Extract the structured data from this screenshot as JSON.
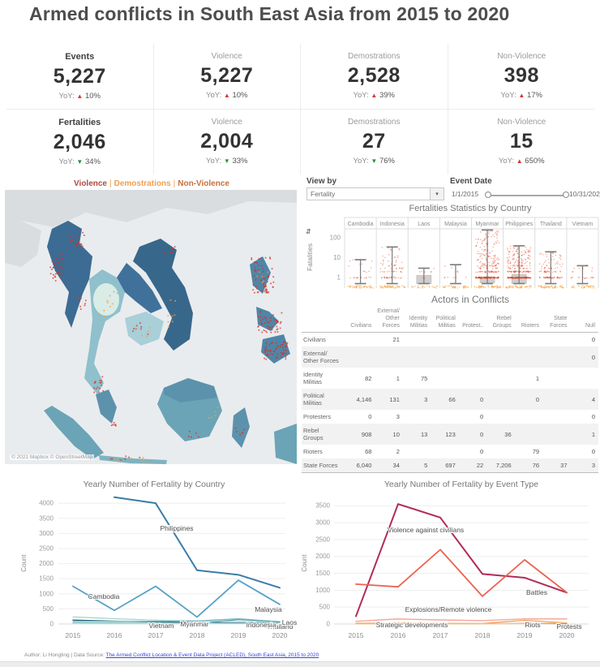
{
  "title": "Armed conflicts in South East Asia from 2015 to 2020",
  "yoy_label": "YoY:",
  "kpi_colors": {
    "up": "#d8372f",
    "down": "#2f8e44"
  },
  "kpis": [
    {
      "label": "Events",
      "value": "5,227",
      "yoy": "10%",
      "dir": "up",
      "emphasis": true
    },
    {
      "label": "Violence",
      "value": "5,227",
      "yoy": "10%",
      "dir": "up",
      "emphasis": false
    },
    {
      "label": "Demostrations",
      "value": "2,528",
      "yoy": "39%",
      "dir": "up",
      "emphasis": false
    },
    {
      "label": "Non-Violence",
      "value": "398",
      "yoy": "17%",
      "dir": "up",
      "emphasis": false
    },
    {
      "label": "Fertalities",
      "value": "2,046",
      "yoy": "34%",
      "dir": "down",
      "emphasis": true
    },
    {
      "label": "Violence",
      "value": "2,004",
      "yoy": "33%",
      "dir": "down",
      "emphasis": false
    },
    {
      "label": "Demostrations",
      "value": "27",
      "yoy": "76%",
      "dir": "down",
      "emphasis": false
    },
    {
      "label": "Non-Violence",
      "value": "15",
      "yoy": "650%",
      "dir": "up",
      "emphasis": false
    }
  ],
  "map": {
    "legend": [
      {
        "label": "Violence",
        "color": "#b04a42"
      },
      {
        "label": "Demostrations",
        "color": "#f0a04c"
      },
      {
        "label": "Non-Violence",
        "color": "#c9703c"
      }
    ],
    "separator": "|",
    "attribution": "© 2021 Mapbox © OpenStreetMap"
  },
  "controls": {
    "view_by_label": "View by",
    "view_by_value": "Fertality",
    "event_date_label": "Event Date",
    "date_start": "1/1/2015",
    "date_end": "10/31/2020"
  },
  "footer": {
    "credit": "Author: Li Hongting | Data Source: ",
    "link": "The Armed Conflict Location & Event Data Project (ACLED), South East Asia, 2015 to 2020"
  },
  "chart_data": [
    {
      "type": "boxplot",
      "title": "Fertalities Statistics by Country",
      "ylabel": "Fatalities",
      "yscale": "log",
      "yticks": [
        1,
        10,
        100
      ],
      "categories": [
        "Cambodia",
        "Indonesia",
        "Laos",
        "Malaysia",
        "Myanmar",
        "Philippines",
        "Thailand",
        "Vietnam"
      ],
      "whisker_high": [
        8,
        35,
        3,
        4.5,
        250,
        40,
        20,
        4
      ],
      "whisker_low": 0.5,
      "box": [
        null,
        null,
        [
          0.5,
          1.3
        ],
        null,
        [
          0.55,
          1.1
        ],
        [
          0.5,
          1.45
        ],
        null,
        null
      ],
      "point_count": [
        25,
        80,
        8,
        12,
        300,
        300,
        110,
        25
      ],
      "zero_point_count": [
        45,
        50,
        25,
        40,
        50,
        50,
        50,
        35
      ],
      "colors": {
        "points": "#e03210",
        "zero_points": "#f6a13c",
        "whisker": "#7a7a7a"
      }
    },
    {
      "type": "table",
      "title": "Actors in Conflicts",
      "columns": [
        "Civilians",
        "External/\nOther\nForces",
        "Identity\nMilitias",
        "Political\nMilitias",
        "Protest..",
        "Rebel\nGroups",
        "Rioters",
        "State\nForces",
        "Null"
      ],
      "rows": [
        {
          "label": "Civilians",
          "values": [
            "",
            "21",
            "",
            "",
            "",
            "",
            "",
            "",
            "0"
          ]
        },
        {
          "label": "External/\nOther Forces",
          "values": [
            "",
            "",
            "",
            "",
            "",
            "",
            "",
            "",
            "0"
          ]
        },
        {
          "label": "Identity\nMilitias",
          "values": [
            "82",
            "1",
            "75",
            "",
            "",
            "",
            "1",
            "",
            ""
          ]
        },
        {
          "label": "Political\nMilitias",
          "values": [
            "4,146",
            "131",
            "3",
            "66",
            "0",
            "",
            "0",
            "",
            "4"
          ]
        },
        {
          "label": "Protesters",
          "values": [
            "0",
            "3",
            "",
            "",
            "0",
            "",
            "",
            "",
            "0"
          ]
        },
        {
          "label": "Rebel\nGroups",
          "values": [
            "908",
            "10",
            "13",
            "123",
            "0",
            "36",
            "",
            "",
            "1"
          ]
        },
        {
          "label": "Rioters",
          "values": [
            "68",
            "2",
            "",
            "",
            "0",
            "",
            "79",
            "",
            "0"
          ]
        },
        {
          "label": "State Forces",
          "values": [
            "6,040",
            "34",
            "5",
            "697",
            "22",
            "7,206",
            "76",
            "37",
            "3"
          ]
        }
      ]
    },
    {
      "type": "line",
      "title": "Yearly Number of Fertality by Country",
      "ylabel": "Count",
      "x": [
        2015,
        2016,
        2017,
        2018,
        2019,
        2020
      ],
      "ylim": [
        0,
        4300
      ],
      "yticks": [
        0,
        500,
        1000,
        1500,
        2000,
        2500,
        3000,
        3500,
        4000
      ],
      "series": [
        {
          "name": "Philippines",
          "color": "#3a7ca8",
          "width": 2,
          "values": [
            null,
            4200,
            4000,
            1780,
            1630,
            1200
          ],
          "label_pos": [
            218,
            68
          ]
        },
        {
          "name": "Myanmar",
          "color": "#58a1c8",
          "width": 1.8,
          "values": [
            1250,
            450,
            1250,
            230,
            1450,
            650
          ],
          "label_pos": [
            240,
            186
          ]
        },
        {
          "name": "Cambodia",
          "color": "#2b5f7d",
          "width": 1.3,
          "values": [
            130,
            95,
            70,
            50,
            35,
            25
          ],
          "label_pos": [
            128,
            152
          ]
        },
        {
          "name": "Thailand",
          "color": "#a3d4cb",
          "width": 1.3,
          "values": [
            235,
            175,
            125,
            105,
            90,
            55
          ],
          "label_pos": [
            345,
            189
          ]
        },
        {
          "name": "Indonesia",
          "color": "#7db8c9",
          "width": 1.3,
          "values": [
            95,
            85,
            90,
            100,
            175,
            70
          ],
          "label_pos": [
            322,
            187
          ]
        },
        {
          "name": "Vietnam",
          "color": "#8fcec4",
          "width": 1.3,
          "values": [
            45,
            35,
            30,
            25,
            20,
            15
          ],
          "label_pos": [
            199,
            188
          ]
        },
        {
          "name": "Malaysia",
          "color": "#63aab4",
          "width": 1.3,
          "values": [
            20,
            15,
            12,
            10,
            150,
            75
          ],
          "label_pos": [
            331,
            168
          ]
        },
        {
          "name": "Laos",
          "color": "#c7e8e0",
          "width": 1.3,
          "values": [
            8,
            6,
            5,
            4,
            4,
            3
          ],
          "label_pos": [
            357,
            184
          ]
        }
      ]
    },
    {
      "type": "line",
      "title": "Yearly Number of Fertality by Event Type",
      "ylabel": "Count",
      "x": [
        2015,
        2016,
        2017,
        2018,
        2019,
        2020
      ],
      "ylim": [
        0,
        3650
      ],
      "yticks": [
        0,
        500,
        1000,
        1500,
        2000,
        2500,
        3000,
        3500
      ],
      "series": [
        {
          "name": "Violence against civilians",
          "color": "#b02c54",
          "width": 2,
          "values": [
            230,
            3550,
            3150,
            1480,
            1370,
            930
          ],
          "label_pos": [
            155,
            70
          ]
        },
        {
          "name": "Battles",
          "color": "#ec6352",
          "width": 1.8,
          "values": [
            1180,
            1100,
            2200,
            820,
            1900,
            930
          ],
          "label_pos": [
            292,
            147
          ]
        },
        {
          "name": "Explosions/Remote violence",
          "color": "#f3a79c",
          "width": 1.4,
          "values": [
            80,
            150,
            120,
            100,
            150,
            150
          ],
          "label_pos": [
            183,
            168
          ]
        },
        {
          "name": "Riots",
          "color": "#f29b4e",
          "width": 1.2,
          "values": [
            20,
            25,
            20,
            15,
            110,
            35
          ],
          "label_pos": [
            287,
            187
          ]
        },
        {
          "name": "Strategic developments",
          "color": "#ee7f22",
          "width": 1.2,
          "values": [
            15,
            12,
            10,
            10,
            18,
            12
          ],
          "label_pos": [
            138,
            187
          ]
        },
        {
          "name": "Protests",
          "color": "#f8c583",
          "width": 1.2,
          "values": [
            5,
            6,
            5,
            8,
            12,
            40
          ],
          "label_pos": [
            332,
            189
          ]
        }
      ]
    }
  ]
}
